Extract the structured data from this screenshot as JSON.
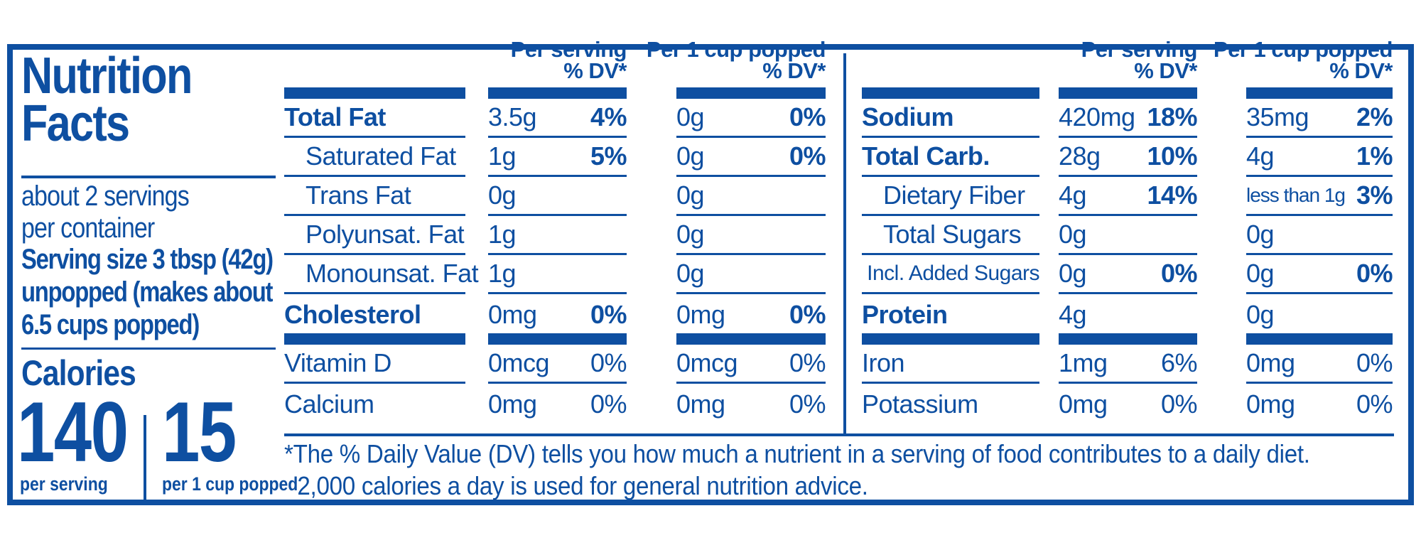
{
  "brand_colors": {
    "blue": "#0E4FA1"
  },
  "title": {
    "line1": "Nutrition",
    "line2": "Facts"
  },
  "serving_info": {
    "servings_line1": "about 2 servings",
    "servings_line2": "per container",
    "serving_size_line1": "Serving size 3 tbsp (42g)",
    "serving_size_line2": "unpopped (makes about",
    "serving_size_line3": "6.5 cups popped)"
  },
  "calories": {
    "heading": "Calories",
    "per_serving_value": "140",
    "per_serving_label": "per serving",
    "per_cup_value": "15",
    "per_cup_label": "per 1 cup popped"
  },
  "column_headers": {
    "per_serving": "Per serving",
    "per_cup": "Per 1 cup popped",
    "dv": "% DV*"
  },
  "nutrition_table": {
    "left": {
      "rows": [
        {
          "label": "Total Fat",
          "style": "bold",
          "serving_amount": "3.5g",
          "serving_dv": "4%",
          "serving_dv_bold": true,
          "cup_amount": "0g",
          "cup_dv": "0%",
          "cup_dv_bold": true,
          "separator": true
        },
        {
          "label": "Saturated Fat",
          "style": "indent",
          "serving_amount": "1g",
          "serving_dv": "5%",
          "serving_dv_bold": true,
          "cup_amount": "0g",
          "cup_dv": "0%",
          "cup_dv_bold": true,
          "separator": true
        },
        {
          "label": "Trans Fat",
          "style": "indent",
          "serving_amount": "0g",
          "serving_dv": "",
          "cup_amount": "0g",
          "cup_dv": "",
          "separator": true
        },
        {
          "label": "Polyunsat. Fat",
          "style": "indent",
          "serving_amount": "1g",
          "serving_dv": "",
          "cup_amount": "0g",
          "cup_dv": "",
          "separator": true
        },
        {
          "label": "Monounsat. Fat",
          "style": "indent",
          "serving_amount": "1g",
          "serving_dv": "",
          "cup_amount": "0g",
          "cup_dv": "",
          "separator": true
        },
        {
          "label": "Cholesterol",
          "style": "bold",
          "serving_amount": "0mg",
          "serving_dv": "0%",
          "serving_dv_bold": true,
          "cup_amount": "0mg",
          "cup_dv": "0%",
          "cup_dv_bold": true,
          "separator": false
        }
      ],
      "vitamins": [
        {
          "label": "Vitamin D",
          "style": "plain",
          "serving_amount": "0mcg",
          "serving_dv": "0%",
          "serving_dv_bold": false,
          "cup_amount": "0mcg",
          "cup_dv": "0%",
          "cup_dv_bold": false,
          "separator": true
        },
        {
          "label": "Calcium",
          "style": "plain",
          "serving_amount": "0mg",
          "serving_dv": "0%",
          "serving_dv_bold": false,
          "cup_amount": "0mg",
          "cup_dv": "0%",
          "cup_dv_bold": false,
          "separator": false
        }
      ]
    },
    "right": {
      "rows": [
        {
          "label": "Sodium",
          "style": "bold",
          "serving_amount": "420mg",
          "serving_dv": "18%",
          "serving_dv_bold": true,
          "cup_amount": "35mg",
          "cup_dv": "2%",
          "cup_dv_bold": true,
          "separator": true
        },
        {
          "label": "Total Carb.",
          "style": "bold",
          "serving_amount": "28g",
          "serving_dv": "10%",
          "serving_dv_bold": true,
          "cup_amount": "4g",
          "cup_dv": "1%",
          "cup_dv_bold": true,
          "separator": true
        },
        {
          "label": "Dietary Fiber",
          "style": "indent",
          "serving_amount": "4g",
          "serving_dv": "14%",
          "serving_dv_bold": true,
          "cup_amount": "less than 1g",
          "cup_amount_small": true,
          "cup_dv": "3%",
          "cup_dv_bold": true,
          "separator": true
        },
        {
          "label": "Total Sugars",
          "style": "indent",
          "serving_amount": "0g",
          "serving_dv": "",
          "cup_amount": "0g",
          "cup_dv": "",
          "separator": true
        },
        {
          "label": "Incl. Added Sugars",
          "style": "indent2",
          "serving_amount": "0g",
          "serving_dv": "0%",
          "serving_dv_bold": true,
          "cup_amount": "0g",
          "cup_dv": "0%",
          "cup_dv_bold": true,
          "separator": true
        },
        {
          "label": "Protein",
          "style": "bold",
          "serving_amount": "4g",
          "serving_dv": "",
          "cup_amount": "0g",
          "cup_dv": "",
          "separator": false
        }
      ],
      "vitamins": [
        {
          "label": "Iron",
          "style": "plain",
          "serving_amount": "1mg",
          "serving_dv": "6%",
          "serving_dv_bold": false,
          "cup_amount": "0mg",
          "cup_dv": "0%",
          "cup_dv_bold": false,
          "separator": true
        },
        {
          "label": "Potassium",
          "style": "plain",
          "serving_amount": "0mg",
          "serving_dv": "0%",
          "serving_dv_bold": false,
          "cup_amount": "0mg",
          "cup_dv": "0%",
          "cup_dv_bold": false,
          "separator": false
        }
      ]
    }
  },
  "footnote": {
    "line1": "*The % Daily Value (DV) tells you how much a nutrient in a serving of food contributes to a daily diet.",
    "line2": "2,000 calories a day is used for general nutrition advice."
  }
}
